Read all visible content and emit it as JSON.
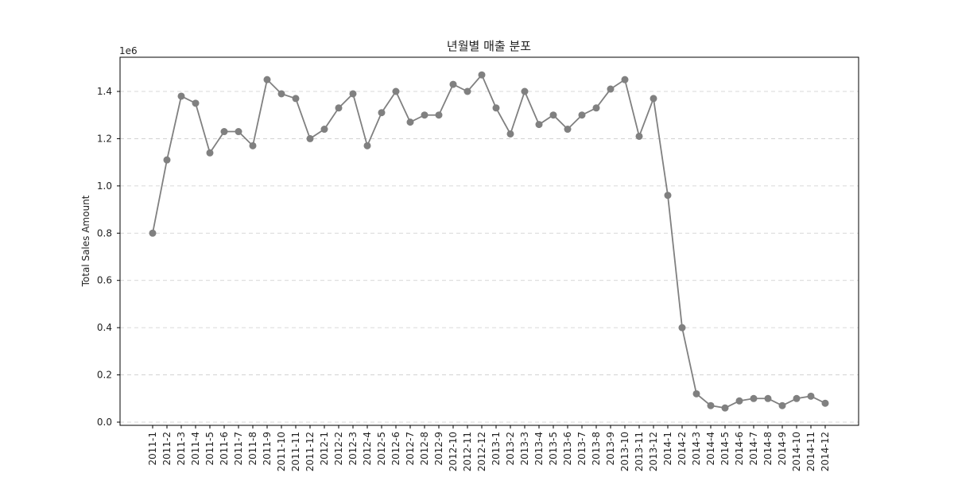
{
  "chart_data": {
    "type": "line",
    "title": "년월별 매출 분포",
    "xlabel": "",
    "ylabel": "Total Sales Amount",
    "y_scale_label": "1e6",
    "ylim": [
      0,
      1.55
    ],
    "yticks": [
      "0.0",
      "0.2",
      "0.4",
      "0.6",
      "0.8",
      "1.0",
      "1.2",
      "1.4"
    ],
    "ytick_values": [
      0,
      0.2,
      0.4,
      0.6,
      0.8,
      1.0,
      1.2,
      1.4
    ],
    "grid": "y-dashed",
    "color": "#808080",
    "marker": "circle",
    "categories": [
      "2011-1",
      "2011-2",
      "2011-3",
      "2011-4",
      "2011-5",
      "2011-6",
      "2011-7",
      "2011-8",
      "2011-9",
      "2011-10",
      "2011-11",
      "2011-12",
      "2012-1",
      "2012-2",
      "2012-3",
      "2012-4",
      "2012-5",
      "2012-6",
      "2012-7",
      "2012-8",
      "2012-9",
      "2012-10",
      "2012-11",
      "2012-12",
      "2013-1",
      "2013-2",
      "2013-3",
      "2013-4",
      "2013-5",
      "2013-6",
      "2013-7",
      "2013-8",
      "2013-9",
      "2013-10",
      "2013-11",
      "2013-12",
      "2014-1",
      "2014-2",
      "2014-3",
      "2014-4",
      "2014-5",
      "2014-6",
      "2014-7",
      "2014-8",
      "2014-9",
      "2014-10",
      "2014-11",
      "2014-12"
    ],
    "values": [
      0.8,
      1.11,
      1.38,
      1.35,
      1.14,
      1.23,
      1.23,
      1.17,
      1.45,
      1.39,
      1.37,
      1.2,
      1.24,
      1.33,
      1.39,
      1.17,
      1.31,
      1.4,
      1.27,
      1.3,
      1.3,
      1.43,
      1.4,
      1.47,
      1.33,
      1.22,
      1.4,
      1.26,
      1.3,
      1.24,
      1.3,
      1.33,
      1.41,
      1.45,
      1.21,
      1.37,
      0.96,
      0.4,
      0.12,
      0.07,
      0.06,
      0.09,
      0.1,
      0.1,
      0.07,
      0.1,
      0.11,
      0.08
    ]
  }
}
